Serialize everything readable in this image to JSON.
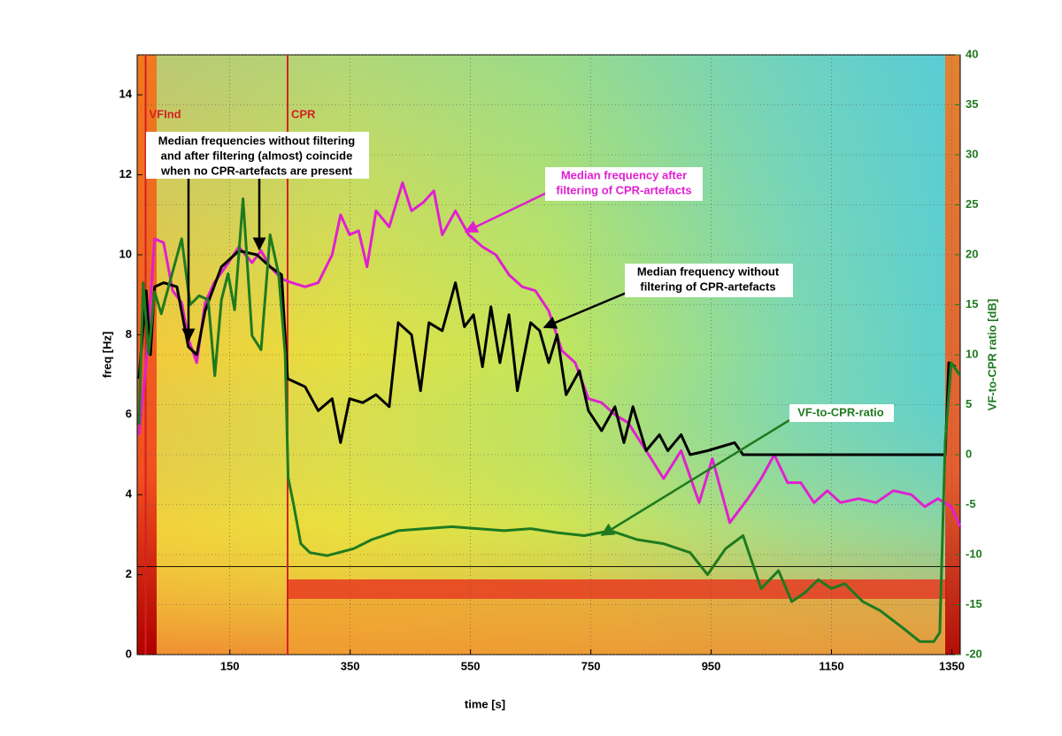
{
  "chart_data": {
    "type": "line",
    "xlabel": "time [s]",
    "ylabel": "freq [Hz]",
    "y2label": "VF-to-CPR ratio [dB]",
    "xlim": [
      -4,
      1364
    ],
    "ylim": [
      0,
      15
    ],
    "y2lim": [
      -20,
      40
    ],
    "xticks": [
      150,
      350,
      550,
      750,
      950,
      1150,
      1350
    ],
    "yticks": [
      0,
      2,
      4,
      6,
      8,
      10,
      12,
      14
    ],
    "y2ticks": [
      -20,
      -15,
      -10,
      -5,
      0,
      5,
      10,
      15,
      20,
      25,
      30,
      35,
      40
    ],
    "grid": true,
    "events": [
      {
        "label": "VFInd",
        "x": 10,
        "color": "#d42020"
      },
      {
        "label": "CPR",
        "x": 246,
        "color": "#d42020"
      }
    ],
    "reference_line": 2.2,
    "series": [
      {
        "color": "#e020d0",
        "x": [
          -1,
          11,
          25,
          40,
          55,
          70,
          81,
          95,
          109,
          124,
          143,
          165,
          187,
          202,
          217,
          236,
          253,
          275,
          297,
          320,
          334,
          349,
          364,
          378,
          393,
          415,
          437,
          452,
          471,
          489,
          503,
          525,
          547,
          570,
          592,
          614,
          636,
          658,
          680,
          702,
          724,
          746,
          768,
          790,
          812,
          842,
          871,
          900,
          930,
          952,
          981,
          1011,
          1033,
          1055,
          1077,
          1099,
          1121,
          1143,
          1165,
          1195,
          1224,
          1253,
          1283,
          1305,
          1327,
          1349,
          1364
        ],
        "values": [
          5.5,
          7.3,
          10.4,
          10.3,
          9.1,
          8.8,
          7.9,
          7.3,
          8.8,
          9.3,
          9.7,
          10.2,
          9.8,
          10.1,
          9.7,
          9.4,
          9.3,
          9.2,
          9.3,
          10.0,
          11.0,
          10.5,
          10.6,
          9.7,
          11.1,
          10.7,
          11.8,
          11.1,
          11.3,
          11.6,
          10.5,
          11.1,
          10.5,
          10.2,
          10.0,
          9.5,
          9.2,
          9.1,
          8.6,
          7.6,
          7.3,
          6.4,
          6.3,
          6.0,
          5.8,
          5.1,
          4.4,
          5.1,
          3.8,
          4.9,
          3.3,
          3.9,
          4.4,
          5.0,
          4.3,
          4.3,
          3.8,
          4.1,
          3.8,
          3.9,
          3.8,
          4.1,
          4.0,
          3.7,
          3.9,
          3.7,
          3.2
        ]
      },
      {
        "color": "#000000",
        "x": [
          -1,
          11,
          18,
          25,
          40,
          62,
          81,
          95,
          109,
          136,
          165,
          195,
          217,
          236,
          246,
          275,
          297,
          320,
          334,
          349,
          371,
          393,
          415,
          430,
          452,
          467,
          481,
          503,
          525,
          540,
          555,
          570,
          584,
          599,
          614,
          628,
          650,
          665,
          680,
          694,
          709,
          731,
          746,
          768,
          790,
          805,
          820,
          842,
          864,
          878,
          900,
          915,
          944,
          989,
          1003,
          1092,
          1327,
          1339,
          1345,
          1356
        ],
        "values": [
          6.9,
          9.1,
          7.5,
          9.2,
          9.3,
          9.2,
          7.7,
          7.5,
          8.6,
          9.7,
          10.1,
          10.0,
          9.7,
          9.5,
          6.9,
          6.7,
          6.1,
          6.4,
          5.3,
          6.4,
          6.3,
          6.5,
          6.2,
          8.3,
          8.0,
          6.6,
          8.3,
          8.1,
          9.3,
          8.2,
          8.5,
          7.2,
          8.7,
          7.3,
          8.5,
          6.6,
          8.3,
          8.1,
          7.3,
          8.0,
          6.5,
          7.1,
          6.1,
          5.6,
          6.2,
          5.3,
          6.2,
          5.1,
          5.5,
          5.1,
          5.5,
          5.0,
          5.1,
          5.3,
          5.0,
          5.0,
          5.0,
          5.0,
          7.3,
          7.2
        ]
      },
      {
        "color": "#1f7a1f",
        "axis": "y2",
        "x": [
          -1,
          6,
          15,
          25,
          36,
          50,
          70,
          84,
          99,
          114,
          125,
          136,
          147,
          158,
          172,
          187,
          202,
          217,
          231,
          242,
          247,
          256,
          268,
          283,
          312,
          356,
          386,
          430,
          474,
          518,
          562,
          606,
          650,
          694,
          739,
          783,
          827,
          871,
          915,
          944,
          974,
          1003,
          1033,
          1062,
          1084,
          1106,
          1128,
          1150,
          1172,
          1202,
          1231,
          1268,
          1297,
          1320,
          1330,
          1339,
          1349,
          1364
        ],
        "values": [
          3.0,
          17.2,
          10.1,
          16.3,
          14.1,
          17.2,
          21.6,
          15.0,
          15.9,
          15.5,
          7.9,
          15.5,
          18.1,
          14.5,
          25.6,
          11.9,
          10.5,
          22.0,
          18.1,
          10.1,
          -2.3,
          -5.0,
          -8.9,
          -9.8,
          -10.1,
          -9.4,
          -8.5,
          -7.6,
          -7.4,
          -7.2,
          -7.4,
          -7.6,
          -7.4,
          -7.8,
          -8.1,
          -7.6,
          -8.5,
          -8.9,
          -9.8,
          -12.0,
          -9.4,
          -8.1,
          -13.4,
          -11.6,
          -14.7,
          -13.8,
          -12.5,
          -13.4,
          -12.9,
          -14.7,
          -15.6,
          -17.3,
          -18.7,
          -18.7,
          -17.8,
          1.2,
          9.2,
          7.9
        ]
      }
    ],
    "annotations": [
      {
        "lines": [
          "Median frequencies without filtering",
          "and after filtering (almost) coincide",
          "when no CPR-artefacts are present"
        ],
        "color": "#000000"
      },
      {
        "lines": [
          "Median frequency after",
          "filtering of CPR-artefacts"
        ],
        "color": "#e020d0"
      },
      {
        "lines": [
          "Median frequency without",
          "filtering of CPR-artefacts"
        ],
        "color": "#000000"
      },
      {
        "lines": [
          "VF-to-CPR-ratio"
        ],
        "color": "#1f7a1f"
      }
    ]
  }
}
